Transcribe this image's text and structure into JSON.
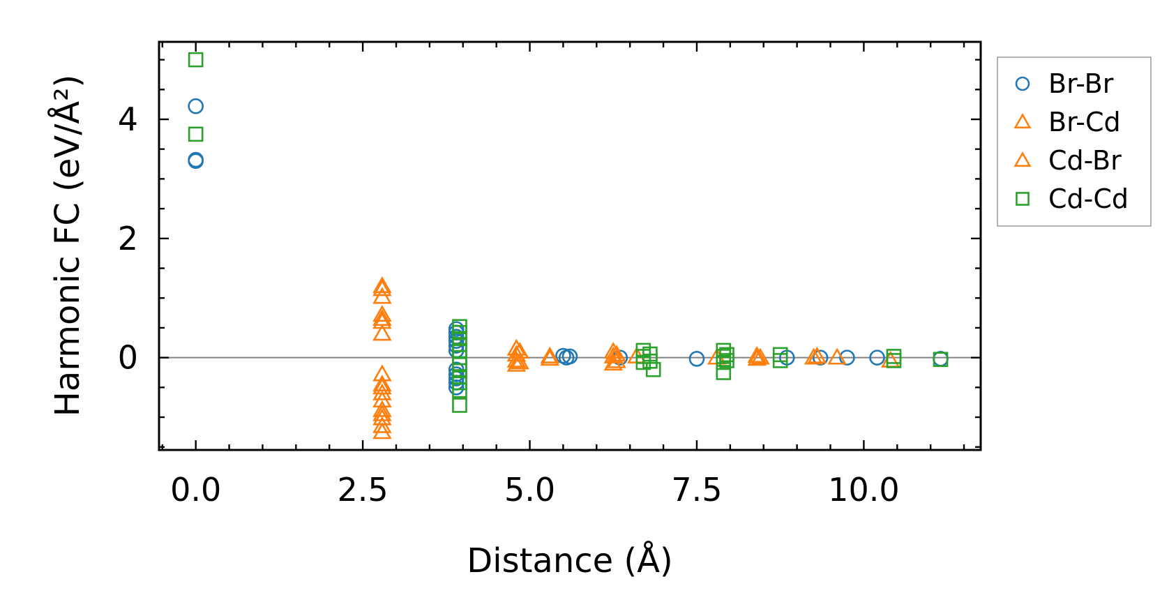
{
  "chart_data": {
    "type": "scatter",
    "title": "",
    "xlabel": "Distance (Å)",
    "ylabel": "Harmonic FC (eV/Å²)",
    "xlim": [
      -0.55,
      11.75
    ],
    "ylim": [
      -1.55,
      5.3
    ],
    "xticks": [
      0.0,
      2.5,
      5.0,
      7.5,
      10.0
    ],
    "xtick_labels": [
      "0.0",
      "2.5",
      "5.0",
      "7.5",
      "10.0"
    ],
    "yticks": [
      0,
      2,
      4
    ],
    "ytick_labels": [
      "0",
      "2",
      "4"
    ],
    "zero_line": true,
    "grid": false,
    "legend_position": "outside-right",
    "series": [
      {
        "name": "Br-Br",
        "marker": "circle",
        "color": "#1f77b4",
        "points": [
          [
            0.0,
            4.22
          ],
          [
            0.0,
            3.32
          ],
          [
            0.0,
            3.3
          ],
          [
            3.9,
            0.48
          ],
          [
            3.9,
            0.42
          ],
          [
            3.9,
            0.35
          ],
          [
            3.9,
            0.28
          ],
          [
            3.9,
            0.2
          ],
          [
            3.9,
            0.12
          ],
          [
            3.9,
            -0.2
          ],
          [
            3.9,
            -0.28
          ],
          [
            3.9,
            -0.35
          ],
          [
            3.9,
            -0.42
          ],
          [
            3.9,
            -0.5
          ],
          [
            5.5,
            0.03
          ],
          [
            5.55,
            0.0
          ],
          [
            5.6,
            0.02
          ],
          [
            6.35,
            0.0
          ],
          [
            7.5,
            -0.02
          ],
          [
            8.85,
            0.0
          ],
          [
            9.35,
            0.0
          ],
          [
            9.75,
            0.0
          ],
          [
            10.2,
            0.0
          ],
          [
            11.15,
            -0.02
          ]
        ]
      },
      {
        "name": "Br-Cd",
        "marker": "triangle",
        "color": "#ff7f0e",
        "points": [
          [
            2.79,
            1.2
          ],
          [
            2.79,
            1.02
          ],
          [
            2.79,
            0.72
          ],
          [
            2.79,
            0.6
          ],
          [
            2.79,
            0.4
          ],
          [
            2.79,
            -0.28
          ],
          [
            2.79,
            -0.45
          ],
          [
            2.79,
            -0.6
          ],
          [
            2.79,
            -0.72
          ],
          [
            2.79,
            -0.88
          ],
          [
            2.79,
            -1.02
          ],
          [
            2.79,
            -1.15
          ],
          [
            2.79,
            -1.25
          ],
          [
            4.8,
            0.15
          ],
          [
            4.8,
            0.05
          ],
          [
            4.8,
            -0.05
          ],
          [
            4.8,
            -0.12
          ],
          [
            5.3,
            0.02
          ],
          [
            5.3,
            -0.02
          ],
          [
            6.25,
            0.1
          ],
          [
            6.25,
            0.02
          ],
          [
            6.25,
            -0.1
          ],
          [
            6.6,
            0.02
          ],
          [
            7.8,
            0.0
          ],
          [
            8.4,
            0.03
          ],
          [
            8.4,
            -0.02
          ],
          [
            9.3,
            0.02
          ],
          [
            9.6,
            0.0
          ],
          [
            10.4,
            -0.05
          ]
        ]
      },
      {
        "name": "Cd-Br",
        "marker": "triangle",
        "color": "#ff7f0e",
        "points": [
          [
            2.79,
            1.15
          ],
          [
            2.79,
            0.65
          ],
          [
            2.79,
            -0.5
          ],
          [
            2.79,
            -0.95
          ],
          [
            4.85,
            0.1
          ],
          [
            4.85,
            -0.08
          ],
          [
            6.3,
            0.05
          ],
          [
            6.3,
            -0.06
          ],
          [
            8.45,
            0.0
          ],
          [
            9.25,
            0.0
          ]
        ]
      },
      {
        "name": "Cd-Cd",
        "marker": "square",
        "color": "#2ca02c",
        "points": [
          [
            0.0,
            5.0
          ],
          [
            0.0,
            3.75
          ],
          [
            3.95,
            0.52
          ],
          [
            3.95,
            0.42
          ],
          [
            3.95,
            0.32
          ],
          [
            3.95,
            0.22
          ],
          [
            3.95,
            0.12
          ],
          [
            3.95,
            0.0
          ],
          [
            3.95,
            -0.12
          ],
          [
            3.95,
            -0.22
          ],
          [
            3.95,
            -0.32
          ],
          [
            3.95,
            -0.42
          ],
          [
            3.95,
            -0.55
          ],
          [
            3.95,
            -0.8
          ],
          [
            6.7,
            0.12
          ],
          [
            6.7,
            0.02
          ],
          [
            6.7,
            -0.08
          ],
          [
            6.8,
            0.06
          ],
          [
            6.8,
            -0.06
          ],
          [
            6.85,
            -0.2
          ],
          [
            7.9,
            0.12
          ],
          [
            7.9,
            0.02
          ],
          [
            7.9,
            -0.08
          ],
          [
            7.9,
            -0.25
          ],
          [
            7.95,
            0.05
          ],
          [
            7.95,
            -0.05
          ],
          [
            8.75,
            0.05
          ],
          [
            8.75,
            -0.05
          ],
          [
            10.45,
            0.02
          ],
          [
            10.45,
            -0.05
          ],
          [
            11.15,
            -0.03
          ]
        ]
      }
    ]
  }
}
